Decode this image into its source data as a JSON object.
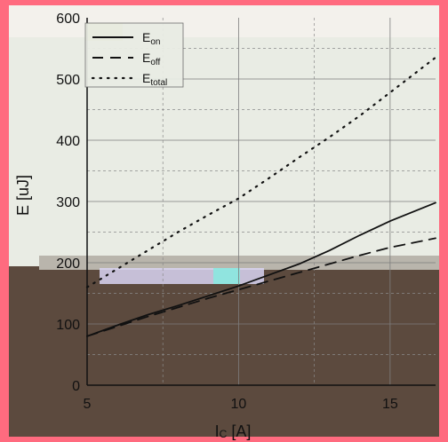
{
  "chart_data": {
    "type": "line",
    "xlabel_main": "I",
    "xlabel_sub": "C",
    "xlabel_unit": " [A]",
    "ylabel": "E [uJ]",
    "xlim": [
      5,
      16.5
    ],
    "ylim": [
      0,
      600
    ],
    "xticks": [
      5,
      10,
      15
    ],
    "yticks": [
      0,
      100,
      200,
      300,
      400,
      500,
      600
    ],
    "x_minor_grid": [
      7.5,
      12.5
    ],
    "y_minor_grid": [
      50,
      150,
      250,
      350,
      450,
      550
    ],
    "legend_position": "top-left",
    "series": [
      {
        "name_main": "E",
        "name_sub": "on",
        "style": "solid",
        "x": [
          5,
          6,
          7,
          8,
          9,
          10,
          11,
          12,
          13,
          14,
          15,
          16.5
        ],
        "y": [
          80,
          98,
          115,
          130,
          146,
          162,
          180,
          198,
          220,
          245,
          268,
          298
        ]
      },
      {
        "name_main": "E",
        "name_sub": "off",
        "style": "dashed",
        "x": [
          5,
          6,
          7,
          8,
          9,
          10,
          11,
          12,
          13,
          14,
          15,
          16.5
        ],
        "y": [
          80,
          96,
          112,
          127,
          142,
          156,
          170,
          184,
          198,
          212,
          225,
          240
        ]
      },
      {
        "name_main": "E",
        "name_sub": "total",
        "style": "dotted",
        "x": [
          5,
          6,
          7,
          8,
          9,
          10,
          11,
          12,
          13,
          14,
          15,
          16.5
        ],
        "y": [
          160,
          190,
          220,
          250,
          278,
          305,
          338,
          372,
          405,
          440,
          478,
          535
        ]
      }
    ]
  },
  "colors": {
    "frame": "#ff6b7f",
    "plot_bg": "#e9ece4",
    "band_lower": "#5c4a3e",
    "band_seam": "#b9b5ac",
    "band_strip": "#f3f1ec",
    "band_glitch": "#8a8fd8",
    "line": "#111111"
  }
}
